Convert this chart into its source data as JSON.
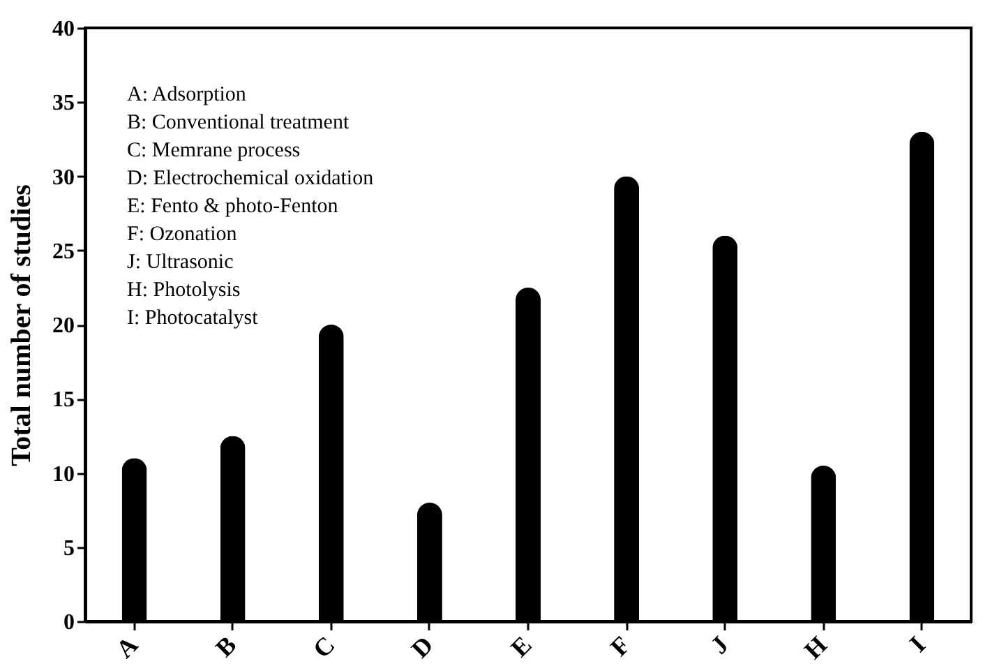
{
  "chart_data": {
    "type": "bar",
    "ylabel": "Total number of studies",
    "categories": [
      "A",
      "B",
      "C",
      "D",
      "E",
      "F",
      "J",
      "H",
      "I"
    ],
    "values": [
      11,
      12.5,
      20,
      8,
      22.5,
      30,
      26,
      10.5,
      33
    ],
    "color": "#000000",
    "ylim": [
      0,
      40
    ],
    "yticks": [
      0,
      5,
      10,
      15,
      20,
      25,
      30,
      35,
      40
    ],
    "grid": false,
    "annotations": [
      "A: Adsorption",
      "B: Conventional treatment",
      "C: Memrane process",
      "D: Electrochemical oxidation",
      "E: Fento & photo-Fenton",
      "F: Ozonation",
      "J: Ultrasonic",
      "H: Photolysis",
      "I: Photocatalyst"
    ]
  }
}
